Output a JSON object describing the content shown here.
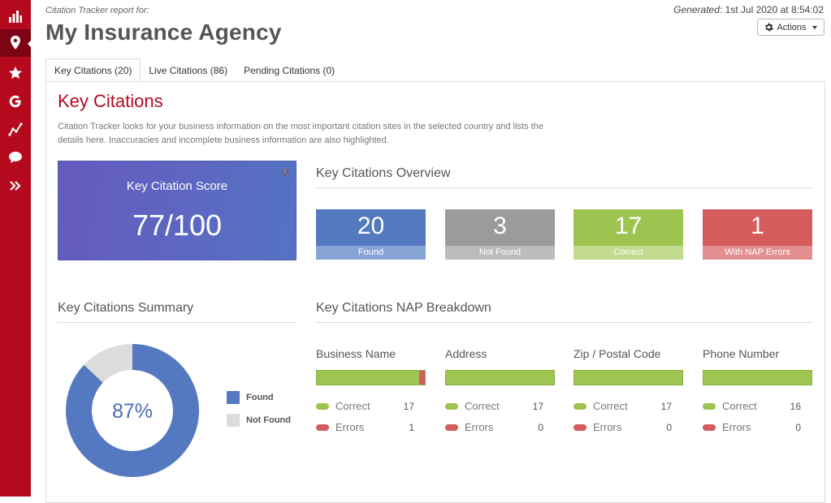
{
  "sidebar": {
    "items": [
      {
        "name": "bar-chart-icon"
      },
      {
        "name": "map-pin-icon",
        "active": true
      },
      {
        "name": "star-icon"
      },
      {
        "name": "google-icon"
      },
      {
        "name": "trend-line-icon"
      },
      {
        "name": "chat-bubble-icon"
      },
      {
        "name": "double-chevron-right-icon"
      }
    ],
    "color": "#b5091e",
    "active_color": "#7d0413"
  },
  "header": {
    "report_label": "Citation Tracker report for:",
    "title": "My Insurance Agency",
    "generated_label": "Generated:",
    "generated_value": "1st Jul 2020 at 8:54:02",
    "actions_label": "Actions"
  },
  "tabs": [
    {
      "label": "Key Citations (20)",
      "active": true
    },
    {
      "label": "Live Citations (86)",
      "active": false
    },
    {
      "label": "Pending Citations (0)",
      "active": false
    }
  ],
  "main": {
    "title": "Key Citations",
    "description": "Citation Tracker looks for your business information on the most important citation sites in the selected country and lists the details here. Inaccuracies and incomplete business information are also highlighted."
  },
  "score": {
    "label": "Key Citation Score",
    "value": "77/100"
  },
  "overview": {
    "title": "Key Citations Overview",
    "stats": [
      {
        "value": "20",
        "label": "Found",
        "color": "#5479c1",
        "label_color": "#86a4d6"
      },
      {
        "value": "3",
        "label": "Not Found",
        "color": "#9b9b9b",
        "label_color": "#bcbcbc"
      },
      {
        "value": "17",
        "label": "Correct",
        "color": "#9dc350",
        "label_color": "#c2db8f"
      },
      {
        "value": "1",
        "label": "With NAP Errors",
        "color": "#d65b5c",
        "label_color": "#e48f8f"
      }
    ]
  },
  "summary": {
    "title": "Key Citations Summary",
    "percent_label": "87%",
    "found_fraction": 0.87,
    "legend": [
      {
        "label": "Found",
        "color": "#5479c1"
      },
      {
        "label": "Not Found",
        "color": "#dcdcdc"
      }
    ]
  },
  "nap": {
    "title": "Key Citations NAP Breakdown",
    "correct_label": "Correct",
    "errors_label": "Errors",
    "correct_color": "#9dc350",
    "error_color": "#d65b5c",
    "columns": [
      {
        "name": "Business Name",
        "correct": "17",
        "errors": "1",
        "error_fraction": 0.056
      },
      {
        "name": "Address",
        "correct": "17",
        "errors": "0",
        "error_fraction": 0
      },
      {
        "name": "Zip / Postal Code",
        "correct": "17",
        "errors": "0",
        "error_fraction": 0
      },
      {
        "name": "Phone Number",
        "correct": "16",
        "errors": "0",
        "error_fraction": 0
      }
    ]
  }
}
